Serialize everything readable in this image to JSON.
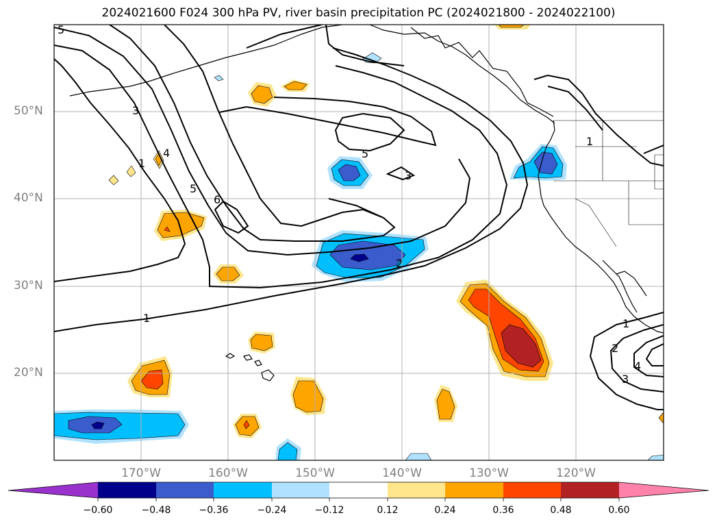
{
  "title": "2024021600 F024 300 hPa PV, river basin precipitation PC (2024021800 - 2024022100)",
  "lat_labels": [
    "50°N",
    "40°N",
    "30°N",
    "20°N"
  ],
  "lon_labels": [
    "170°W",
    "160°W",
    "150°W",
    "140°W",
    "130°W",
    "120°W"
  ],
  "contour_labels": [
    "5",
    "3",
    "4",
    "1",
    "5",
    "6",
    "5",
    "3",
    "2",
    "1",
    "1",
    "1",
    "2",
    "3",
    "4"
  ],
  "colorbar": {
    "colors": [
      "#9932cc",
      "#00008b",
      "#3a5ccc",
      "#00bfff",
      "#b0e2ff",
      "#ffffff",
      "#ffe68c",
      "#ffa500",
      "#ff4500",
      "#b22222",
      "#ff82ab"
    ],
    "tick_labels": [
      "−0.60",
      "−0.48",
      "−0.36",
      "−0.24",
      "−0.12",
      "0.12",
      "0.24",
      "0.36",
      "0.48",
      "0.60"
    ]
  }
}
